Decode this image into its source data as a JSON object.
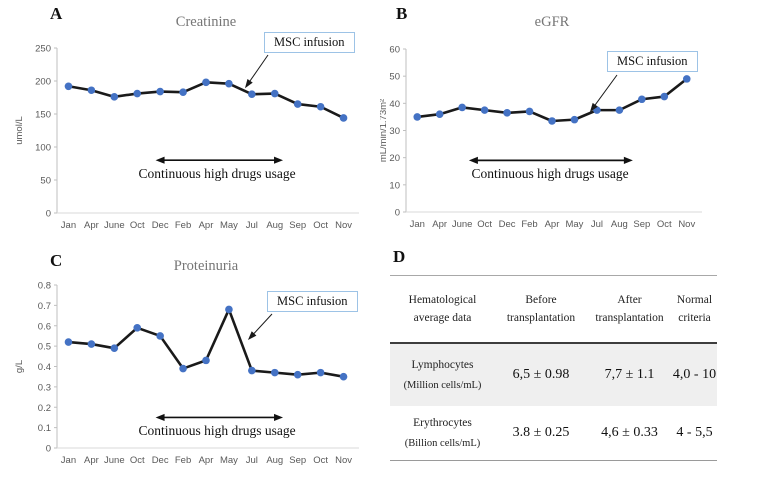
{
  "panels": [
    {
      "letter": "A"
    },
    {
      "letter": "B"
    },
    {
      "letter": "C"
    },
    {
      "letter": "D"
    }
  ],
  "chart_data": [
    {
      "type": "line",
      "panel": "A",
      "title": "Creatinine",
      "ylabel": "umol/L",
      "categories": [
        "Jan",
        "Apr",
        "June",
        "Oct",
        "Dec",
        "Feb",
        "Apr",
        "May",
        "Jul",
        "Aug",
        "Sep",
        "Oct",
        "Nov"
      ],
      "values": [
        192,
        186,
        176,
        181,
        184,
        183,
        198,
        196,
        180,
        181,
        165,
        161,
        144
      ],
      "ylim": [
        0,
        250
      ],
      "ytick_step": 50,
      "line_color": "#1a1a1a",
      "marker_color": "#4472c4",
      "axis_color": "#bfbfbf",
      "tick_text_color": "#595959",
      "legend": "none",
      "grid": false,
      "annotations": {
        "msc_label": "MSC infusion",
        "msc_tip": {
          "i": 7.7,
          "v": 189
        },
        "drugs_label": "Continuous high drugs usage",
        "drugs_span": [
          3.8,
          9.36
        ],
        "drugs_y": 80
      }
    },
    {
      "type": "line",
      "panel": "B",
      "title": "eGFR",
      "ylabel": "mL/min/1.73m²",
      "categories": [
        "Jan",
        "Apr",
        "June",
        "Oct",
        "Dec",
        "Feb",
        "Apr",
        "May",
        "Jul",
        "Aug",
        "Sep",
        "Oct",
        "Nov"
      ],
      "values": [
        35,
        36,
        38.5,
        37.5,
        36.5,
        37,
        33.5,
        34,
        37.5,
        37.5,
        41.5,
        42.5,
        49
      ],
      "ylim": [
        0,
        60
      ],
      "ytick_step": 10,
      "line_color": "#1a1a1a",
      "marker_color": "#4472c4",
      "axis_color": "#bfbfbf",
      "tick_text_color": "#595959",
      "legend": "none",
      "grid": false,
      "annotations": {
        "msc_label": "MSC infusion",
        "msc_tip": {
          "i": 7.69,
          "v": 36.8
        },
        "drugs_label": "Continuous high drugs usage",
        "drugs_span": [
          2.3,
          9.6
        ],
        "drugs_y": 19
      }
    },
    {
      "type": "line",
      "panel": "C",
      "title": "Proteinuria",
      "ylabel": "g/L",
      "categories": [
        "Jan",
        "Apr",
        "June",
        "Oct",
        "Dec",
        "Feb",
        "Apr",
        "May",
        "Jul",
        "Aug",
        "Sep",
        "Oct",
        "Nov"
      ],
      "values": [
        0.52,
        0.51,
        0.49,
        0.59,
        0.55,
        0.39,
        0.43,
        0.68,
        0.38,
        0.37,
        0.36,
        0.37,
        0.35
      ],
      "ylim": [
        0,
        0.8
      ],
      "ytick_step": 0.1,
      "line_color": "#1a1a1a",
      "marker_color": "#4472c4",
      "axis_color": "#bfbfbf",
      "tick_text_color": "#595959",
      "legend": "none",
      "grid": false,
      "annotations": {
        "msc_label": "MSC infusion",
        "msc_tip": {
          "i": 7.83,
          "v": 0.53
        },
        "drugs_label": "Continuous high drugs usage",
        "drugs_span": [
          3.8,
          9.36
        ],
        "drugs_y": 0.15
      }
    }
  ],
  "table": {
    "col_headers": [
      "Hematological\naverage data",
      "Before\ntransplantation",
      "After\ntransplantation",
      "Normal\ncriteria"
    ],
    "rows": [
      {
        "name": "Lymphocytes",
        "unit": "(Million cells/mL)",
        "before": "6,5 ± 0.98",
        "after": "7,7 ± 1.1",
        "normal": "4,0 - 10"
      },
      {
        "name": "Erythrocytes",
        "unit": "(Billion cells/mL)",
        "before": "3.8 ± 0.25",
        "after": "4,6 ± 0.33",
        "normal": "4 - 5,5"
      }
    ]
  }
}
